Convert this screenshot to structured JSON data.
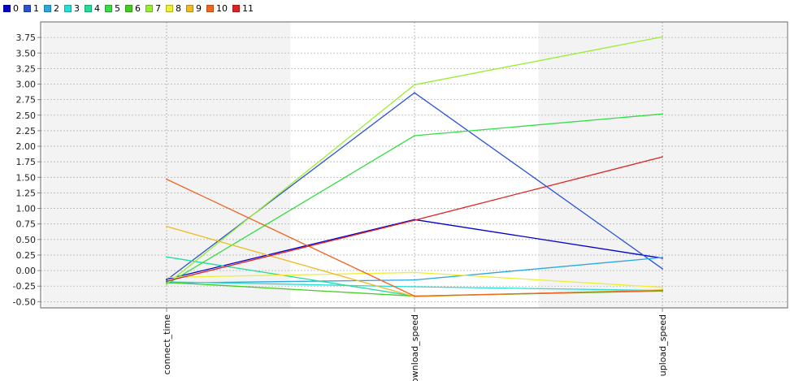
{
  "chart_data": {
    "type": "line",
    "chart_subtype": "parallel-coordinates",
    "title": "",
    "xlabel": "",
    "ylabel": "",
    "categories": [
      "connect_time",
      "download_speed",
      "upload_speed"
    ],
    "ylim": [
      -0.6,
      4.0
    ],
    "yticks": [
      "3.75",
      "3.50",
      "3.25",
      "3.00",
      "2.75",
      "2.50",
      "2.25",
      "2.00",
      "1.75",
      "1.50",
      "1.25",
      "1.00",
      "0.75",
      "0.50",
      "0.25",
      "0.00",
      "-0.25",
      "-0.50"
    ],
    "ytick_values": [
      3.75,
      3.5,
      3.25,
      3.0,
      2.75,
      2.5,
      2.25,
      2.0,
      1.75,
      1.5,
      1.25,
      1.0,
      0.75,
      0.5,
      0.25,
      0.0,
      -0.25,
      -0.5
    ],
    "grid": true,
    "legend_position": "top-left",
    "series": [
      {
        "name": "0",
        "color": "#0000cc",
        "values": [
          -0.14,
          0.82,
          0.2
        ]
      },
      {
        "name": "1",
        "color": "#2a52d6",
        "values": [
          -0.15,
          2.86,
          0.03
        ]
      },
      {
        "name": "2",
        "color": "#29a8e0",
        "values": [
          -0.2,
          -0.15,
          0.21
        ]
      },
      {
        "name": "3",
        "color": "#22e0d6",
        "values": [
          -0.18,
          -0.26,
          -0.32
        ]
      },
      {
        "name": "4",
        "color": "#22dd99",
        "values": [
          0.22,
          -0.41,
          -0.32
        ]
      },
      {
        "name": "5",
        "color": "#33dd44",
        "values": [
          -0.22,
          2.17,
          2.52
        ]
      },
      {
        "name": "6",
        "color": "#44cc22",
        "values": [
          -0.19,
          -0.41,
          -0.33
        ]
      },
      {
        "name": "7",
        "color": "#99ee33",
        "values": [
          -0.22,
          2.99,
          3.76
        ]
      },
      {
        "name": "8",
        "color": "#eeee33",
        "values": [
          -0.11,
          -0.03,
          -0.27
        ]
      },
      {
        "name": "9",
        "color": "#eebb22",
        "values": [
          0.71,
          -0.42,
          -0.31
        ]
      },
      {
        "name": "10",
        "color": "#ee6622",
        "values": [
          1.47,
          -0.41,
          -0.32
        ]
      },
      {
        "name": "11",
        "color": "#dd2222",
        "values": [
          -0.17,
          0.81,
          1.83
        ]
      }
    ]
  }
}
